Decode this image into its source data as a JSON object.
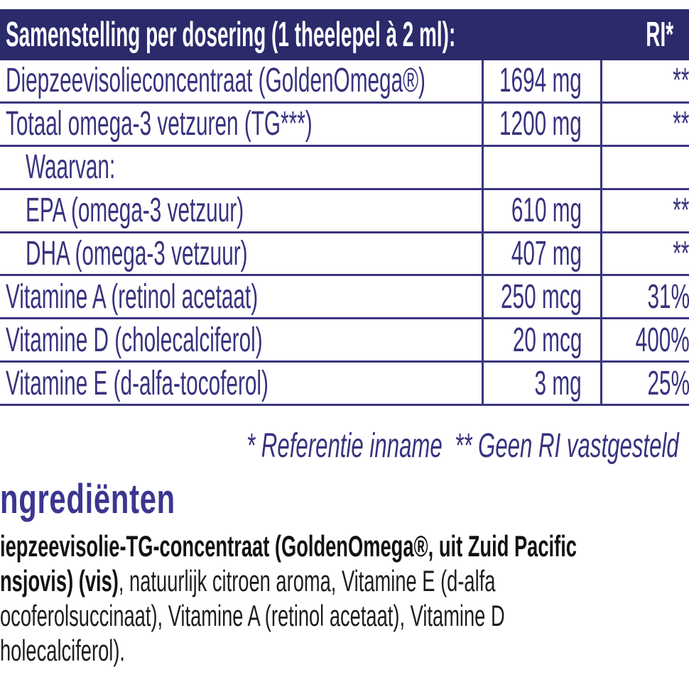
{
  "table": {
    "header": {
      "title": "Samenstelling per dosering (1 theelepel à 2 ml):",
      "ri_label": "RI*"
    },
    "rows": [
      {
        "name": "Diepzeevisolieconcentraat (GoldenOmega®)",
        "amount": "1694 mg",
        "ri": "**"
      },
      {
        "name": "Totaal omega-3 vetzuren (TG***)",
        "amount": "1200 mg",
        "ri": "**"
      },
      {
        "name": "Waarvan:",
        "amount": "",
        "ri": ""
      },
      {
        "name": "EPA (omega-3 vetzuur)",
        "amount": "610 mg",
        "ri": "**"
      },
      {
        "name": "DHA (omega-3 vetzuur)",
        "amount": "407 mg",
        "ri": "**"
      },
      {
        "name": "Vitamine A (retinol acetaat)",
        "amount": "250 mcg",
        "ri": "31%"
      },
      {
        "name": "Vitamine D (cholecalciferol)",
        "amount": "20 mcg",
        "ri": "400%"
      },
      {
        "name": "Vitamine E (d-alfa-tocoferol)",
        "amount": "3 mg",
        "ri": "25%"
      }
    ],
    "footnote": "* Referentie inname  ** Geen RI vastgesteld"
  },
  "ingredients": {
    "heading": "ngrediënten",
    "line1_bold": "iepzeevisolie-TG-concentraat (GoldenOmega®, uit Zuid Pacific",
    "line2_bold": "nsjovis) (vis)",
    "line2_regular": ", natuurlijk citroen aroma, Vitamine E (d-alfa",
    "line3": "ocoferolsuccinaat), Vitamine A (retinol acetaat), Vitamine D",
    "line4": "holecalciferol)."
  },
  "colors": {
    "header_background": "#2b2a6b",
    "table_line": "#3a357f",
    "table_text": "#38327e",
    "heading_text": "#3b3690",
    "body_text": "#1d1d1f",
    "page_background": "#ffffff"
  }
}
